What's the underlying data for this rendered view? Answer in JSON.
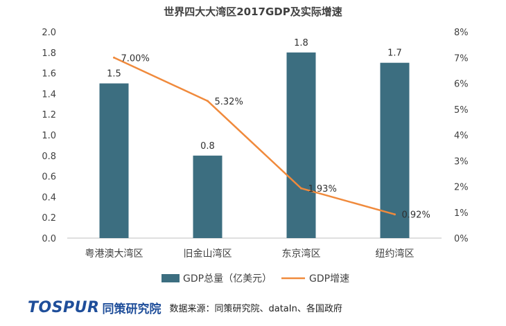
{
  "chart_data": {
    "type": "bar",
    "title": "世界四大大湾区2017GDP及实际增速",
    "categories": [
      "粤港澳大湾区",
      "旧金山湾区",
      "东京湾区",
      "纽约湾区"
    ],
    "series": [
      {
        "name": "GDP总量（亿美元）",
        "kind": "bar",
        "axis": "left",
        "color": "#3c6e80",
        "values": [
          1.5,
          0.8,
          1.8,
          1.7
        ],
        "labels": [
          "1.5",
          "0.8",
          "1.8",
          "1.7"
        ]
      },
      {
        "name": "GDP增速",
        "kind": "line",
        "axis": "right",
        "color": "#f08a3c",
        "values": [
          7.0,
          5.32,
          1.93,
          0.92
        ],
        "labels": [
          "7.00%",
          "5.32%",
          "1.93%",
          "0.92%"
        ]
      }
    ],
    "y_left": {
      "ylim": [
        0,
        2.0
      ],
      "ticks": [
        "0.0",
        "0.2",
        "0.4",
        "0.6",
        "0.8",
        "1.0",
        "1.2",
        "1.4",
        "1.6",
        "1.8",
        "2.0"
      ]
    },
    "y_right": {
      "ylim": [
        0,
        8
      ],
      "ticks": [
        "0%",
        "1%",
        "2%",
        "3%",
        "4%",
        "5%",
        "6%",
        "7%",
        "8%"
      ]
    },
    "grid": false,
    "legend_position": "bottom"
  },
  "footer": {
    "logo_text": "TOSPUR",
    "logo_cn": "同策研究院",
    "source": "数据来源：同策研究院、dataIn、各国政府"
  }
}
